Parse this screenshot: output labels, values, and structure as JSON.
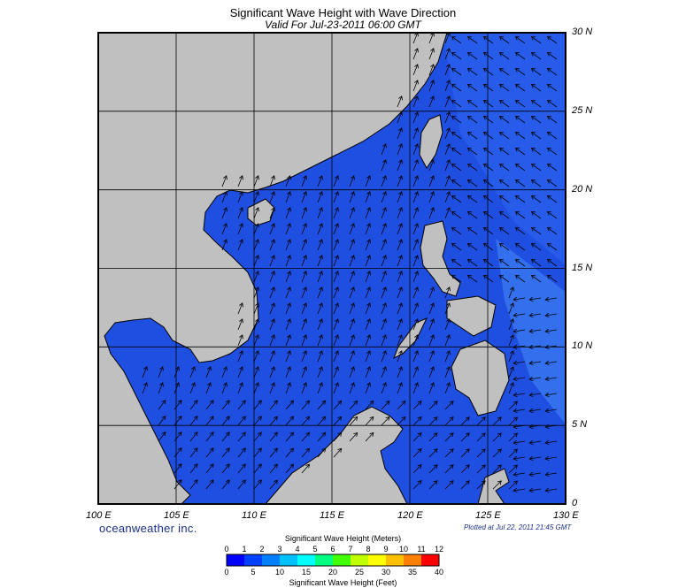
{
  "header": {
    "title": "Significant Wave Height with Wave Direction",
    "valid": "Valid For Jul-23-2011 06:00 GMT"
  },
  "map": {
    "lon_range": [
      100,
      130
    ],
    "lat_range": [
      0,
      30
    ],
    "lon_labels": [
      "100 E",
      "105 E",
      "110 E",
      "115 E",
      "120 E",
      "125 E",
      "130 E"
    ],
    "lat_labels": [
      "30 N",
      "25 N",
      "20 N",
      "15 N",
      "10 N",
      "5 N",
      "0"
    ],
    "land_color": "#c0c0c0",
    "ocean_color": "#1f4fe0",
    "grid_color": "#000000",
    "wave_direction": "mostly toward north-east in South China Sea, toward south-west east of Philippines"
  },
  "footer": {
    "brand": "oceanweather inc.",
    "plotted": "Plotted at Jul 22, 2011 21:45 GMT"
  },
  "colorbar": {
    "title_top": "Significant Wave Height (Meters)",
    "title_bottom": "Significant Wave Height (Feet)",
    "meters": [
      "0",
      "1",
      "2",
      "3",
      "4",
      "5",
      "6",
      "7",
      "8",
      "9",
      "10",
      "11",
      "12"
    ],
    "feet": [
      "0",
      "5",
      "10",
      "15",
      "20",
      "25",
      "30",
      "35",
      "40"
    ],
    "colors": [
      "#0000ff",
      "#0040ff",
      "#0080ff",
      "#00c0ff",
      "#00ffff",
      "#00ff80",
      "#40ff00",
      "#c0ff00",
      "#ffff00",
      "#ffc000",
      "#ff8000",
      "#ff0000"
    ]
  }
}
